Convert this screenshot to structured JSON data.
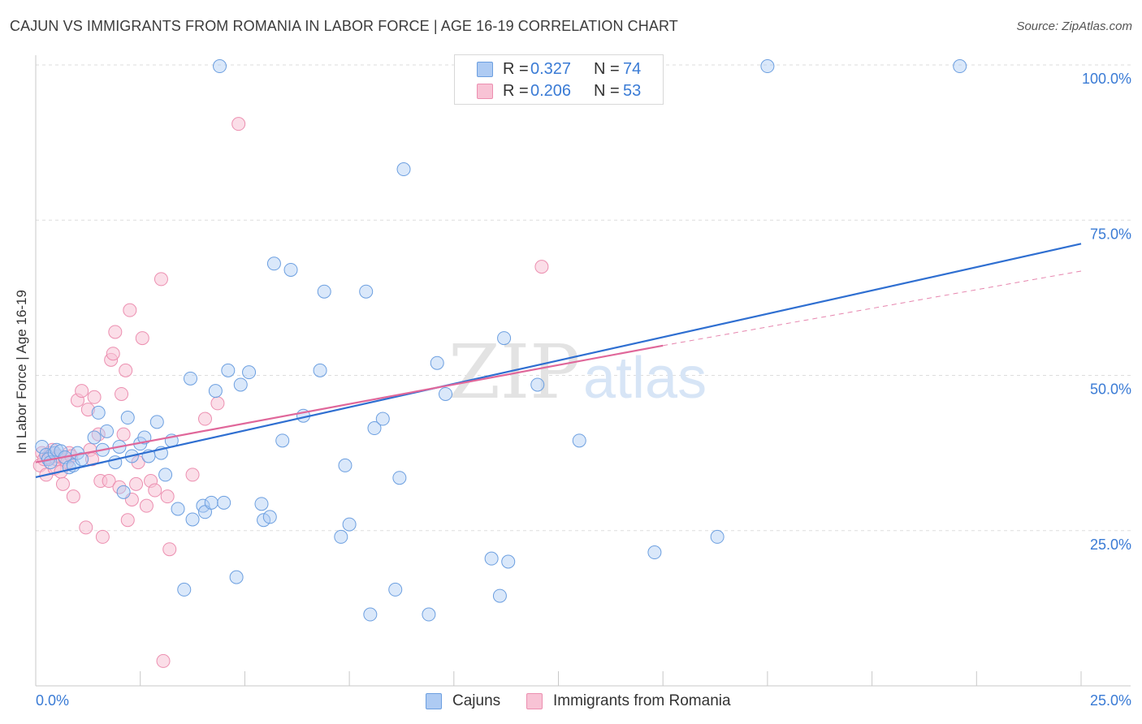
{
  "title": "CAJUN VS IMMIGRANTS FROM ROMANIA IN LABOR FORCE | AGE 16-19 CORRELATION CHART",
  "source": "Source: ZipAtlas.com",
  "watermark": {
    "zip": "ZIP",
    "atlas": "atlas"
  },
  "colors": {
    "blue_fill": "#aecbf3",
    "blue_stroke": "#6c9fe0",
    "blue_line": "#2f6fd1",
    "pink_fill": "#f8c3d5",
    "pink_stroke": "#ec8fb0",
    "pink_line": "#e0679a",
    "tick_label": "#3a7bd5",
    "grid": "#dddddd"
  },
  "legend_top": {
    "rows": [
      {
        "r_label": "R =",
        "r_value": "0.327",
        "n_label": "N =",
        "n_value": "74"
      },
      {
        "r_label": "R =",
        "r_value": "0.206",
        "n_label": "N =",
        "n_value": "53"
      }
    ]
  },
  "legend_bottom": {
    "items": [
      "Cajuns",
      "Immigrants from Romania"
    ]
  },
  "chart_data": {
    "type": "scatter",
    "title": "CAJUN VS IMMIGRANTS FROM ROMANIA IN LABOR FORCE | AGE 16-19 CORRELATION CHART",
    "xlabel": "",
    "ylabel": "In Labor Force | Age 16-19",
    "xlim": [
      0,
      25
    ],
    "ylim": [
      0,
      100
    ],
    "x_tick_labels": [
      "0.0%",
      "25.0%"
    ],
    "y_ticks": [
      25,
      50,
      75,
      100
    ],
    "y_tick_labels": [
      "25.0%",
      "50.0%",
      "75.0%",
      "100.0%"
    ],
    "grid": true,
    "legend_position": "top-center",
    "series": [
      {
        "name": "Cajuns",
        "R": 0.327,
        "N": 74,
        "trend": {
          "x": [
            0,
            25
          ],
          "y": [
            33.6,
            71.2
          ]
        },
        "points": [
          [
            0.15,
            38.5
          ],
          [
            0.25,
            37.2
          ],
          [
            0.3,
            36.5
          ],
          [
            0.35,
            36.0
          ],
          [
            0.45,
            37.5
          ],
          [
            0.5,
            38.0
          ],
          [
            0.6,
            37.8
          ],
          [
            0.7,
            36.8
          ],
          [
            0.8,
            35.2
          ],
          [
            0.9,
            35.5
          ],
          [
            1.0,
            37.5
          ],
          [
            1.1,
            36.5
          ],
          [
            1.4,
            40.0
          ],
          [
            1.5,
            44.0
          ],
          [
            1.6,
            38.0
          ],
          [
            1.7,
            41.0
          ],
          [
            1.9,
            36.0
          ],
          [
            2.0,
            38.5
          ],
          [
            2.1,
            31.2
          ],
          [
            2.2,
            43.2
          ],
          [
            2.3,
            37.0
          ],
          [
            2.5,
            39.0
          ],
          [
            2.6,
            40.0
          ],
          [
            2.7,
            37.0
          ],
          [
            2.9,
            42.5
          ],
          [
            3.0,
            37.5
          ],
          [
            3.1,
            34.0
          ],
          [
            3.25,
            39.5
          ],
          [
            3.4,
            28.5
          ],
          [
            3.55,
            15.5
          ],
          [
            3.7,
            49.5
          ],
          [
            3.75,
            26.8
          ],
          [
            4.0,
            29.0
          ],
          [
            4.05,
            28.0
          ],
          [
            4.2,
            29.5
          ],
          [
            4.3,
            47.5
          ],
          [
            4.4,
            99.8
          ],
          [
            4.5,
            29.5
          ],
          [
            4.6,
            50.8
          ],
          [
            4.8,
            17.5
          ],
          [
            4.9,
            48.5
          ],
          [
            5.1,
            50.5
          ],
          [
            5.4,
            29.3
          ],
          [
            5.45,
            26.7
          ],
          [
            5.6,
            27.2
          ],
          [
            5.7,
            68.0
          ],
          [
            5.9,
            39.5
          ],
          [
            6.1,
            67.0
          ],
          [
            6.4,
            43.5
          ],
          [
            6.8,
            50.8
          ],
          [
            6.9,
            63.5
          ],
          [
            7.3,
            24.0
          ],
          [
            7.4,
            35.5
          ],
          [
            7.5,
            26.0
          ],
          [
            7.9,
            63.5
          ],
          [
            8.0,
            11.5
          ],
          [
            8.1,
            41.5
          ],
          [
            8.3,
            43.0
          ],
          [
            8.6,
            15.5
          ],
          [
            8.7,
            33.5
          ],
          [
            8.8,
            83.2
          ],
          [
            9.4,
            11.5
          ],
          [
            9.6,
            52.0
          ],
          [
            9.8,
            47.0
          ],
          [
            10.9,
            20.5
          ],
          [
            11.1,
            14.5
          ],
          [
            11.2,
            56.0
          ],
          [
            11.3,
            20.0
          ],
          [
            12.0,
            48.5
          ],
          [
            13.0,
            39.5
          ],
          [
            14.8,
            21.5
          ],
          [
            16.3,
            24.0
          ],
          [
            17.5,
            99.8
          ],
          [
            22.1,
            99.8
          ]
        ]
      },
      {
        "name": "Immigrants from Romania",
        "R": 0.206,
        "N": 53,
        "trend": {
          "x": [
            0,
            15
          ],
          "y": [
            36.0,
            54.8
          ]
        },
        "trend_extension": {
          "x": [
            15,
            25
          ],
          "y": [
            54.8,
            66.8
          ]
        },
        "points": [
          [
            0.1,
            35.5
          ],
          [
            0.15,
            37.5
          ],
          [
            0.2,
            36.5
          ],
          [
            0.25,
            34.0
          ],
          [
            0.3,
            36.8
          ],
          [
            0.35,
            37.5
          ],
          [
            0.4,
            38.0
          ],
          [
            0.45,
            35.0
          ],
          [
            0.5,
            36.5
          ],
          [
            0.55,
            37.0
          ],
          [
            0.6,
            34.5
          ],
          [
            0.65,
            32.5
          ],
          [
            0.7,
            36.5
          ],
          [
            0.75,
            36.0
          ],
          [
            0.8,
            37.5
          ],
          [
            0.85,
            37.0
          ],
          [
            0.9,
            30.5
          ],
          [
            1.0,
            46.0
          ],
          [
            1.1,
            47.5
          ],
          [
            1.2,
            25.5
          ],
          [
            1.25,
            44.5
          ],
          [
            1.3,
            38.0
          ],
          [
            1.35,
            36.5
          ],
          [
            1.4,
            46.5
          ],
          [
            1.5,
            40.5
          ],
          [
            1.55,
            33.0
          ],
          [
            1.6,
            24.0
          ],
          [
            1.75,
            33.0
          ],
          [
            1.8,
            52.5
          ],
          [
            1.85,
            53.5
          ],
          [
            1.9,
            57.0
          ],
          [
            2.0,
            32.0
          ],
          [
            2.05,
            47.0
          ],
          [
            2.1,
            40.5
          ],
          [
            2.15,
            50.8
          ],
          [
            2.2,
            26.7
          ],
          [
            2.25,
            60.5
          ],
          [
            2.3,
            30.0
          ],
          [
            2.4,
            32.5
          ],
          [
            2.45,
            36.0
          ],
          [
            2.55,
            56.0
          ],
          [
            2.65,
            29.0
          ],
          [
            2.75,
            33.0
          ],
          [
            2.85,
            31.5
          ],
          [
            3.0,
            65.5
          ],
          [
            3.05,
            4.0
          ],
          [
            3.15,
            30.5
          ],
          [
            3.2,
            22.0
          ],
          [
            3.75,
            34.0
          ],
          [
            4.05,
            43.0
          ],
          [
            4.35,
            45.5
          ],
          [
            4.85,
            90.5
          ],
          [
            12.1,
            67.5
          ]
        ]
      }
    ]
  }
}
